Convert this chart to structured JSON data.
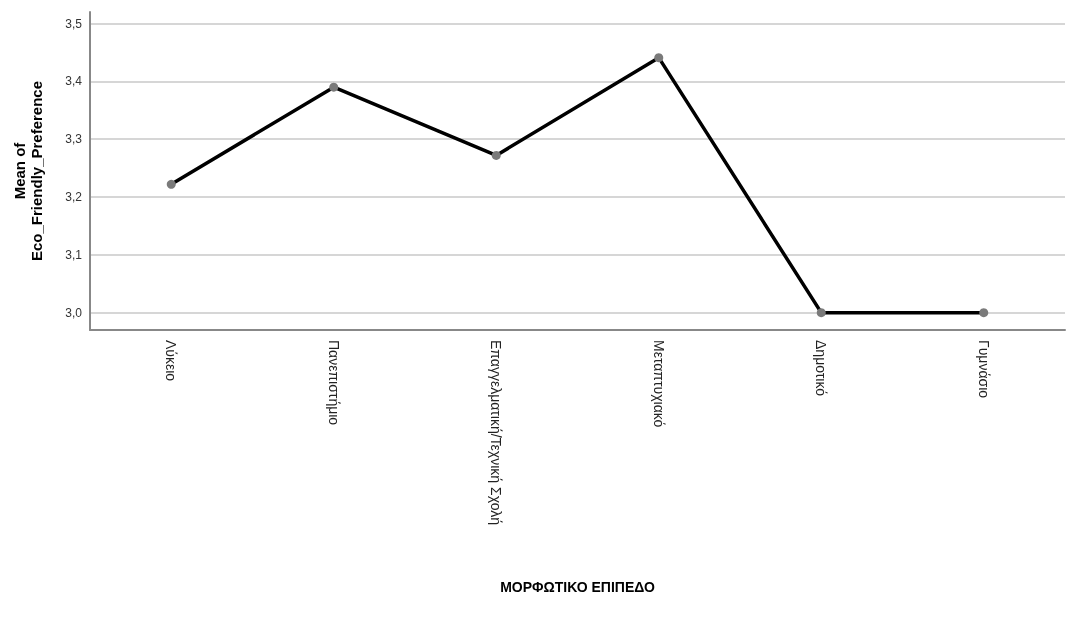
{
  "chart_data": {
    "type": "line",
    "xlabel": "ΜΟΡΦΩΤΙΚΟ ΕΠΙΠΕΔΟ",
    "ylabel": "Mean of\nEco_Friendly_Preference",
    "categories": [
      "Λύκειο",
      "Πανεπιστήμιο",
      "Επαγγελματική/Τεχνική Σχολή",
      "Μεταπτυχιακό",
      "Δημοτικό",
      "Γυμνάσιο"
    ],
    "series": [
      {
        "color": "#000000",
        "values": [
          3.222,
          3.39,
          3.272,
          3.441,
          3.0,
          3.0
        ]
      }
    ],
    "ylim": [
      2.97,
      3.52
    ],
    "yticks": [
      {
        "value": 3.0,
        "label": "3,0"
      },
      {
        "value": 3.1,
        "label": "3,1"
      },
      {
        "value": 3.2,
        "label": "3,2"
      },
      {
        "value": 3.3,
        "label": "3,3"
      },
      {
        "value": 3.4,
        "label": "3,4"
      },
      {
        "value": 3.5,
        "label": "3,5"
      }
    ],
    "grid": "y",
    "marker": "circle",
    "line_style": "solid"
  }
}
